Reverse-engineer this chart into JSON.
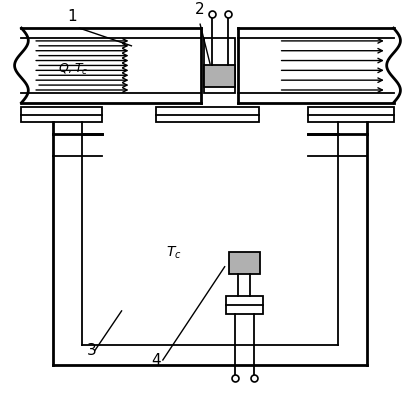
{
  "bg_color": "#ffffff",
  "line_color": "#000000",
  "gray_color": "#b0b0b0",
  "lw_thick": 2.0,
  "lw_thin": 1.3,
  "fig_width": 4.15,
  "fig_height": 3.98,
  "dpi": 100
}
